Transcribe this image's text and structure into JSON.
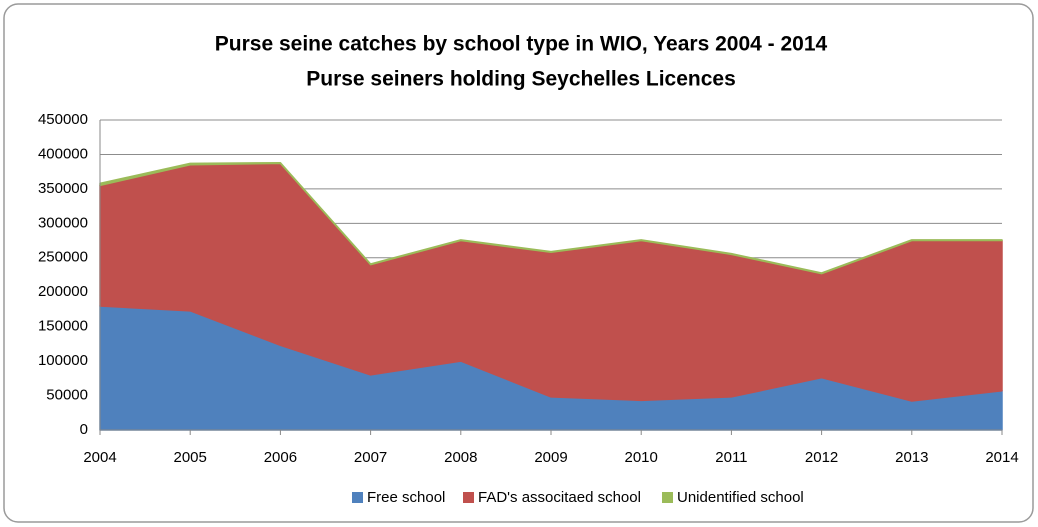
{
  "chart_data": {
    "type": "stacked_area",
    "title": [
      "Purse seine catches by school type in WIO,  Years 2004 - 2014",
      "Purse seiners holding  Seychelles Licences"
    ],
    "categories": [
      "2004",
      "2005",
      "2006",
      "2007",
      "2008",
      "2009",
      "2010",
      "2011",
      "2012",
      "2013",
      "2014"
    ],
    "series": [
      {
        "name": "Free school",
        "color": "#4f81bd",
        "values": [
          180000,
          173000,
          123000,
          80000,
          100000,
          48000,
          43000,
          48000,
          76000,
          42000,
          57000
        ]
      },
      {
        "name": "FAD's associtaed school",
        "color": "#c0504d",
        "values": [
          175000,
          212000,
          264000,
          160000,
          175000,
          210000,
          232000,
          207000,
          151000,
          233000,
          218000
        ]
      },
      {
        "name": "Unidentified school",
        "color": "#9bbb59",
        "values": [
          3000,
          2000,
          1000,
          1000,
          1000,
          1000,
          1000,
          1000,
          1000,
          1000,
          1000
        ]
      }
    ],
    "ylim": [
      0,
      450000
    ],
    "yticks": [
      0,
      50000,
      100000,
      150000,
      200000,
      250000,
      300000,
      350000,
      400000,
      450000
    ],
    "grid": true,
    "legend": "bottom"
  }
}
